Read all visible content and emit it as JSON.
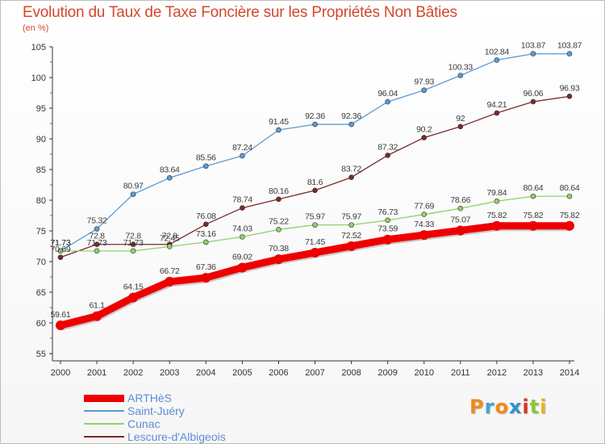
{
  "title": "Evolution du Taux de Taxe Foncière sur les Propriétés Non Bâties",
  "unit": "(en %)",
  "brand": {
    "letters": [
      "P",
      "r",
      "o",
      "x",
      "i",
      "t",
      "i"
    ],
    "colors": [
      "#f18a1c",
      "#3aa3d8",
      "#f18a1c",
      "#2f8fd0",
      "#e0341d",
      "#8cc63f",
      "#e7b31b"
    ]
  },
  "chart_data": {
    "type": "line",
    "x": [
      "2000",
      "2001",
      "2002",
      "2003",
      "2004",
      "2005",
      "2006",
      "2007",
      "2008",
      "2009",
      "2010",
      "2011",
      "2012",
      "2013",
      "2014"
    ],
    "ylim": [
      55,
      105
    ],
    "yticks": [
      "55",
      "60",
      "65",
      "70",
      "75",
      "80",
      "85",
      "90",
      "95",
      "100",
      "105"
    ],
    "grid": false,
    "legend_position": "bottom-left",
    "series": [
      {
        "name": "ARTHèS",
        "color": "#ee0000",
        "values": [
          59.61,
          61.1,
          64.15,
          66.72,
          67.36,
          69.02,
          70.38,
          71.45,
          72.52,
          73.59,
          74.33,
          75.07,
          75.82,
          75.82,
          75.82
        ],
        "labels": [
          "59.61",
          "61.1",
          "64.15",
          "66.72",
          "67.36",
          "69.02",
          "70.38",
          "71.45",
          "72.52",
          "73.59",
          "74.33",
          "75.07",
          "75.82",
          "75.82",
          "75.82"
        ]
      },
      {
        "name": "Saint-Juéry",
        "color": "#5b9bd5",
        "values": [
          71.73,
          75.32,
          80.97,
          83.64,
          85.56,
          87.24,
          91.45,
          92.36,
          92.36,
          96.04,
          97.93,
          100.33,
          102.84,
          103.87,
          103.87
        ],
        "labels": [
          "71.73",
          "75.32",
          "80.97",
          "83.64",
          "85.56",
          "87.24",
          "91.45",
          "92.36",
          "92.36",
          "96.04",
          "97.93",
          "100.33",
          "102.84",
          "103.87",
          "103.87"
        ]
      },
      {
        "name": "Cunac",
        "color": "#8fd16a",
        "values": [
          71.73,
          71.73,
          71.73,
          72.45,
          73.16,
          74.03,
          75.22,
          75.97,
          75.97,
          76.73,
          77.69,
          78.66,
          79.84,
          80.64,
          80.64
        ],
        "labels": [
          "71.73",
          "71.73",
          "71.73",
          "72.45",
          "73.16",
          "74.03",
          "75.22",
          "75.97",
          "75.97",
          "76.73",
          "77.69",
          "78.66",
          "79.84",
          "80.64",
          "80.64"
        ]
      },
      {
        "name": "Lescure-d'Albigeois",
        "color": "#7a2a2a",
        "values": [
          70.69,
          72.8,
          72.8,
          72.8,
          76.08,
          78.74,
          80.16,
          81.6,
          83.72,
          87.32,
          90.2,
          92,
          94.21,
          96.06,
          96.93
        ],
        "labels": [
          "70.69",
          "72.8",
          "72.8",
          "72.8",
          "76.08",
          "78.74",
          "80.16",
          "81.6",
          "83.72",
          "87.32",
          "90.2",
          "92",
          "94.21",
          "96.06",
          "96.93"
        ]
      }
    ]
  }
}
